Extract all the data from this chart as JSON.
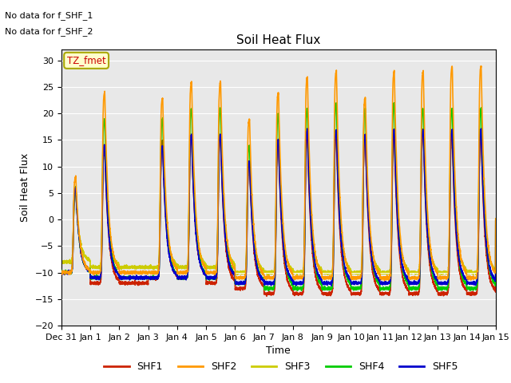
{
  "title": "Soil Heat Flux",
  "xlabel": "Time",
  "ylabel": "Soil Heat Flux",
  "ylim": [
    -20,
    32
  ],
  "yticks": [
    -20,
    -15,
    -10,
    -5,
    0,
    5,
    10,
    15,
    20,
    25,
    30
  ],
  "no_data_text_1": "No data for f_SHF_1",
  "no_data_text_2": "No data for f_SHF_2",
  "tz_label": "TZ_fmet",
  "tz_box_facecolor": "#ffffcc",
  "tz_box_edgecolor": "#aaa800",
  "bg_color": "#e8e8e8",
  "colors": {
    "SHF1": "#cc2200",
    "SHF2": "#ff9900",
    "SHF3": "#cccc00",
    "SHF4": "#00cc00",
    "SHF5": "#0000cc"
  },
  "x_tick_labels": [
    "Dec 31",
    "Jan 1",
    "Jan 2",
    "Jan 3",
    "Jan 4",
    "Jan 5",
    "Jan 6",
    "Jan 7",
    "Jan 8",
    "Jan 9",
    "Jan 10",
    "Jan 11",
    "Jan 12",
    "Jan 13",
    "Jan 14",
    "Jan 15"
  ],
  "num_days": 15,
  "figsize": [
    6.4,
    4.8
  ],
  "dpi": 100
}
